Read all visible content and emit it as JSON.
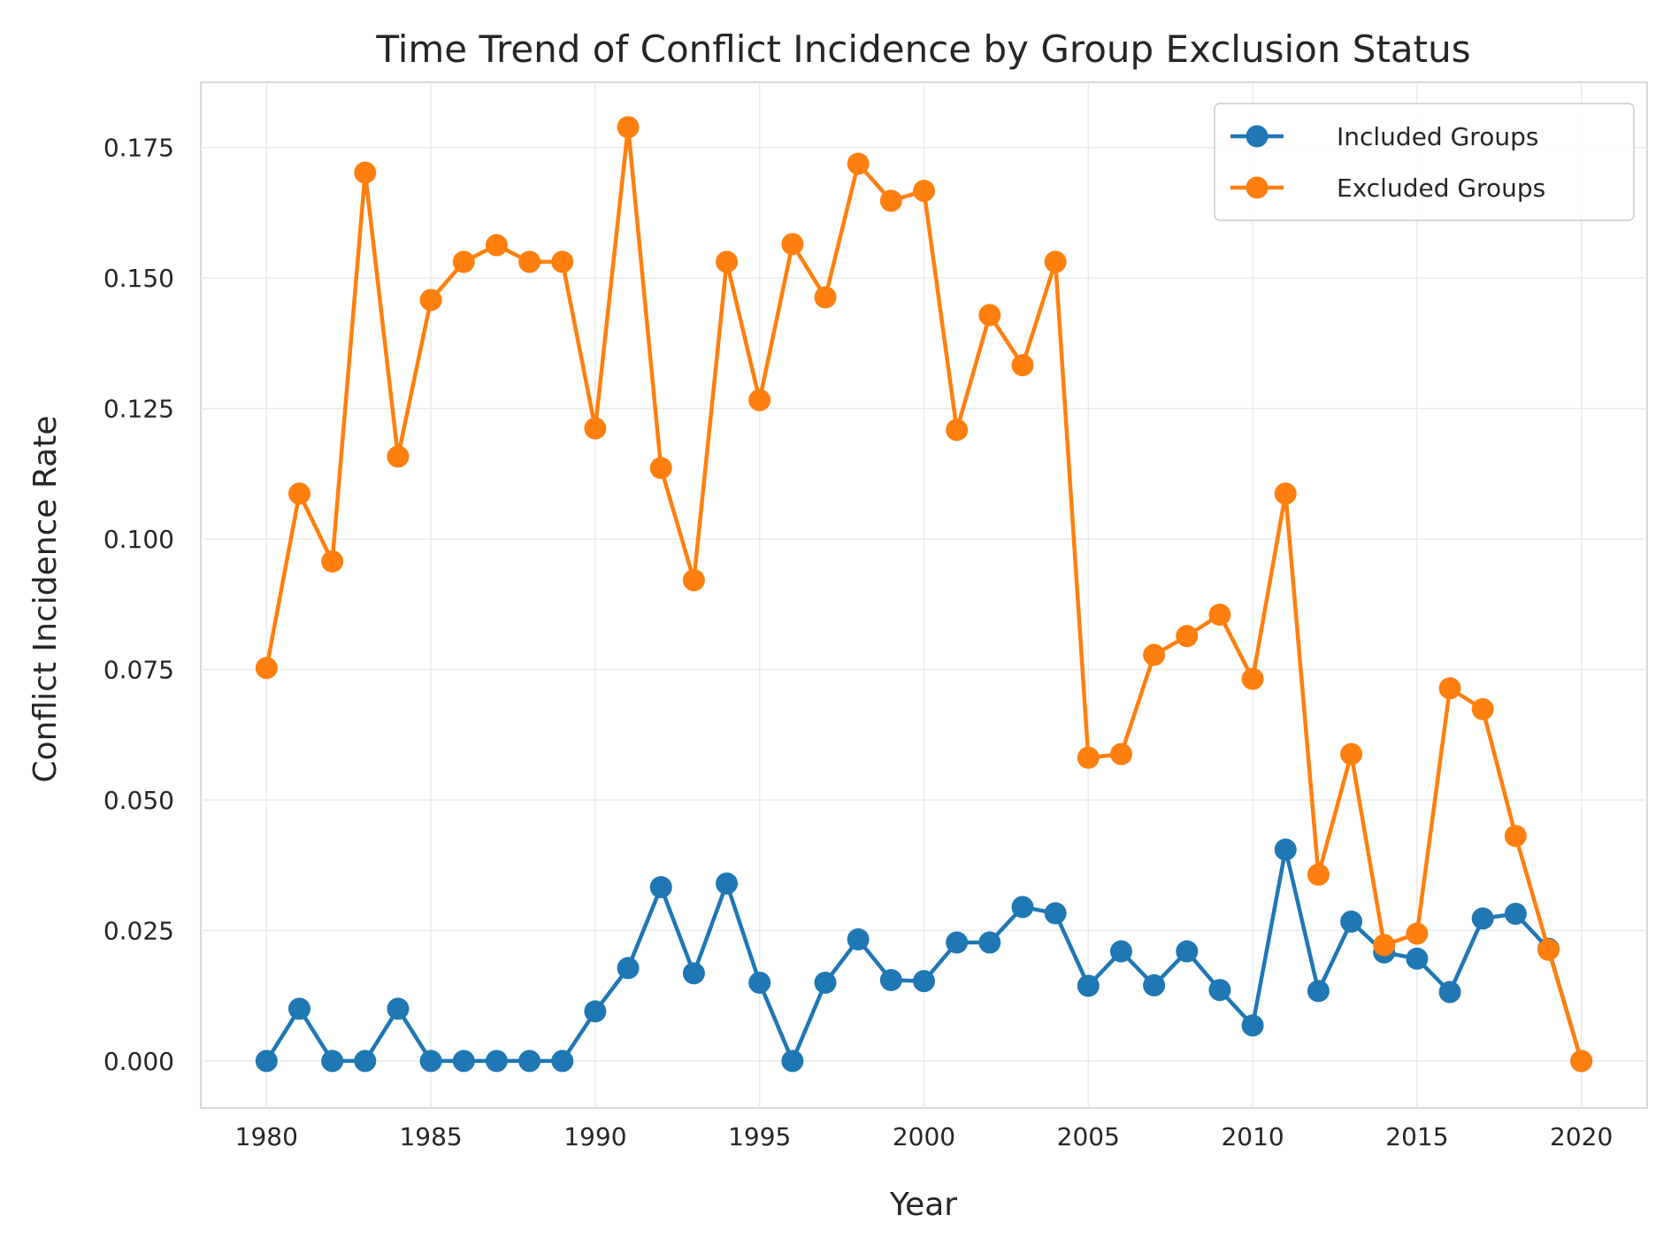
{
  "chart_data": {
    "type": "line",
    "title": "Time Trend of Conflict Incidence by Group Exclusion Status",
    "xlabel": "Year",
    "ylabel": "Conflict Incidence Rate",
    "xlim": [
      1978,
      2022
    ],
    "ylim": [
      -0.009,
      0.1875
    ],
    "xticks": [
      "1980",
      "1985",
      "1990",
      "1995",
      "2000",
      "2005",
      "2010",
      "2015",
      "2020"
    ],
    "yticks": [
      "0.000",
      "0.025",
      "0.050",
      "0.075",
      "0.100",
      "0.125",
      "0.150",
      "0.175"
    ],
    "grid": true,
    "legend_position": "top-right",
    "x": [
      1980,
      1981,
      1982,
      1983,
      1984,
      1985,
      1986,
      1987,
      1988,
      1989,
      1990,
      1991,
      1992,
      1993,
      1994,
      1995,
      1996,
      1997,
      1998,
      1999,
      2000,
      2001,
      2002,
      2003,
      2004,
      2005,
      2006,
      2007,
      2008,
      2009,
      2010,
      2011,
      2012,
      2013,
      2014,
      2015,
      2016,
      2017,
      2018,
      2019,
      2020
    ],
    "series": [
      {
        "name": "Included Groups",
        "color": "#1f77b4",
        "values": [
          0.0,
          0.01,
          0.0,
          0.0,
          0.01,
          0.0,
          0.0,
          0.0,
          0.0,
          0.0,
          0.0095,
          0.0178,
          0.0333,
          0.0168,
          0.034,
          0.015,
          0.0,
          0.015,
          0.0233,
          0.0155,
          0.0153,
          0.0227,
          0.0227,
          0.0295,
          0.0283,
          0.0144,
          0.021,
          0.0145,
          0.021,
          0.0136,
          0.0068,
          0.0405,
          0.0134,
          0.0267,
          0.0208,
          0.0196,
          0.0132,
          0.0273,
          0.0282,
          0.0215,
          0.0
        ]
      },
      {
        "name": "Excluded Groups",
        "color": "#ff7f0e",
        "values": [
          0.0753,
          0.1087,
          0.0957,
          0.1702,
          0.1158,
          0.1458,
          0.1531,
          0.1563,
          0.1531,
          0.1531,
          0.1212,
          0.1789,
          0.1136,
          0.0921,
          0.1531,
          0.1266,
          0.1565,
          0.1463,
          0.1719,
          0.1648,
          0.1667,
          0.1209,
          0.1429,
          0.1333,
          0.1531,
          0.0581,
          0.0588,
          0.0778,
          0.0814,
          0.0855,
          0.0732,
          0.1087,
          0.0357,
          0.0588,
          0.0222,
          0.0244,
          0.0714,
          0.0674,
          0.0431,
          0.0213,
          0.0
        ]
      }
    ]
  }
}
